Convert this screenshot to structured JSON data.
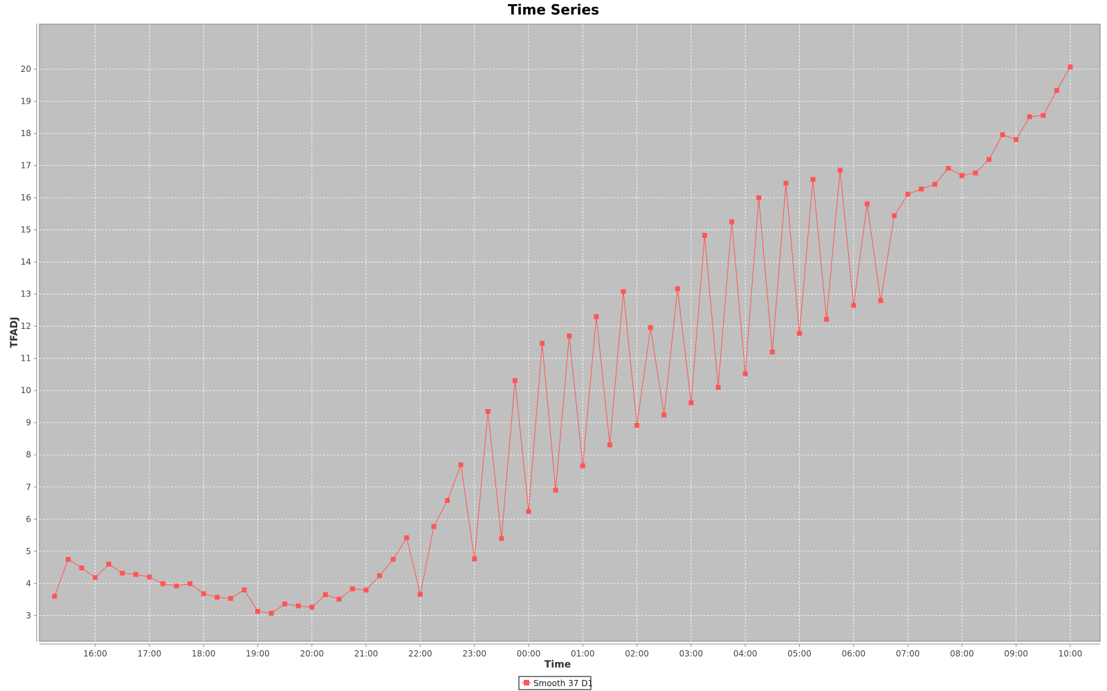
{
  "chart_data": {
    "type": "line",
    "title": "Time Series",
    "xlabel": "Time",
    "ylabel": "TFADJ",
    "ylim": [
      2.2,
      21.4
    ],
    "y_ticks": [
      3,
      4,
      5,
      6,
      7,
      8,
      9,
      10,
      11,
      12,
      13,
      14,
      15,
      16,
      17,
      18,
      19,
      20
    ],
    "x_start_hours": 15.25,
    "x_step_hours": 0.25,
    "xlim_hours": [
      14.97,
      34.55
    ],
    "x_ticks": [
      {
        "hour": 16,
        "label": "16:00"
      },
      {
        "hour": 17,
        "label": "17:00"
      },
      {
        "hour": 18,
        "label": "18:00"
      },
      {
        "hour": 19,
        "label": "19:00"
      },
      {
        "hour": 20,
        "label": "20:00"
      },
      {
        "hour": 21,
        "label": "21:00"
      },
      {
        "hour": 22,
        "label": "22:00"
      },
      {
        "hour": 23,
        "label": "23:00"
      },
      {
        "hour": 24,
        "label": "00:00"
      },
      {
        "hour": 25,
        "label": "01:00"
      },
      {
        "hour": 26,
        "label": "02:00"
      },
      {
        "hour": 27,
        "label": "03:00"
      },
      {
        "hour": 28,
        "label": "04:00"
      },
      {
        "hour": 29,
        "label": "05:00"
      },
      {
        "hour": 30,
        "label": "06:00"
      },
      {
        "hour": 31,
        "label": "07:00"
      },
      {
        "hour": 32,
        "label": "08:00"
      },
      {
        "hour": 33,
        "label": "09:00"
      },
      {
        "hour": 34,
        "label": "10:00"
      }
    ],
    "grid": true,
    "legend_position": "bottom-center",
    "series": [
      {
        "name": "Smooth 37 D1",
        "color": "#ff5555",
        "values": [
          3.6,
          4.75,
          4.48,
          4.18,
          4.6,
          4.32,
          4.28,
          4.2,
          3.99,
          3.92,
          3.99,
          3.68,
          3.57,
          3.53,
          3.8,
          3.13,
          3.07,
          3.36,
          3.3,
          3.26,
          3.65,
          3.51,
          3.83,
          3.79,
          4.24,
          4.75,
          5.42,
          3.66,
          5.77,
          6.58,
          7.69,
          4.76,
          9.35,
          5.4,
          10.31,
          6.24,
          11.47,
          6.9,
          11.7,
          7.66,
          12.3,
          8.31,
          13.08,
          8.92,
          11.96,
          9.24,
          13.17,
          9.62,
          14.83,
          10.1,
          15.25,
          10.52,
          16.0,
          11.2,
          16.45,
          11.78,
          16.57,
          12.22,
          16.86,
          12.65,
          15.81,
          12.8,
          15.44,
          16.11,
          16.27,
          16.42,
          16.92,
          16.69,
          16.77,
          17.19,
          17.96,
          17.81,
          18.52,
          18.56,
          19.34,
          20.07
        ]
      }
    ]
  }
}
